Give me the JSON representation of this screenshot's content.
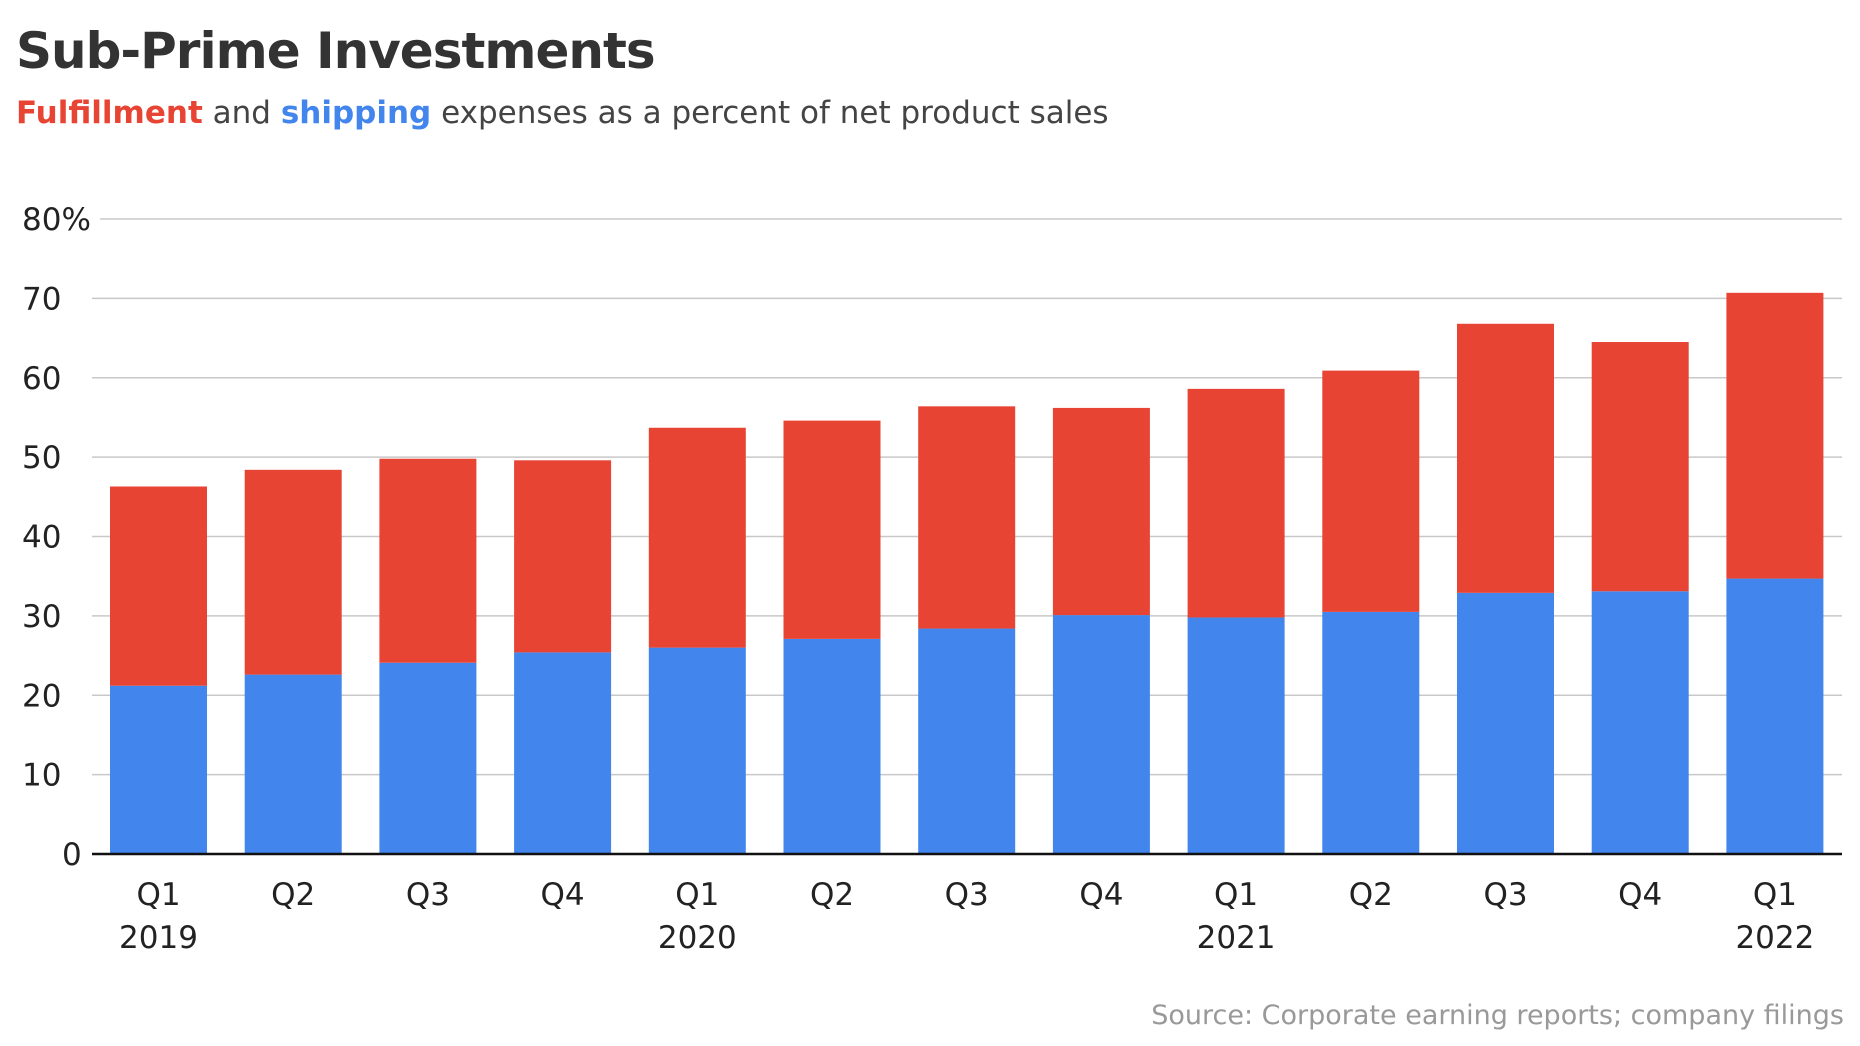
{
  "title": "Sub-Prime Investments",
  "subtitle": {
    "fulfillment_word": "Fulfillment",
    "and_word": " and ",
    "shipping_word": "shipping",
    "rest": " expenses as a percent of net product sales"
  },
  "source": "Source: Corporate earning reports; company filings",
  "colors": {
    "fulfillment": "#E84433",
    "shipping": "#4285EC"
  },
  "chart_data": {
    "type": "bar",
    "stacked": true,
    "title": "Sub-Prime Investments",
    "categories": [
      "Q1 2019",
      "Q2 2019",
      "Q3 2019",
      "Q4 2019",
      "Q1 2020",
      "Q2 2020",
      "Q3 2020",
      "Q4 2020",
      "Q1 2021",
      "Q2 2021",
      "Q3 2021",
      "Q4 2021",
      "Q1 2022"
    ],
    "x_tick_labels": [
      [
        "Q1",
        "2019"
      ],
      [
        "Q2",
        ""
      ],
      [
        "Q3",
        ""
      ],
      [
        "Q4",
        ""
      ],
      [
        "Q1",
        "2020"
      ],
      [
        "Q2",
        ""
      ],
      [
        "Q3",
        ""
      ],
      [
        "Q4",
        ""
      ],
      [
        "Q1",
        "2021"
      ],
      [
        "Q2",
        ""
      ],
      [
        "Q3",
        ""
      ],
      [
        "Q4",
        ""
      ],
      [
        "Q1",
        "2022"
      ]
    ],
    "series": [
      {
        "name": "shipping",
        "color": "#4285EC",
        "values": [
          21.2,
          22.6,
          24.1,
          25.4,
          26.0,
          27.1,
          28.4,
          30.1,
          29.8,
          30.5,
          32.9,
          33.1,
          34.7
        ]
      },
      {
        "name": "Fulfillment",
        "color": "#E84433",
        "values": [
          25.1,
          25.8,
          25.7,
          24.2,
          27.7,
          27.5,
          28.0,
          26.1,
          28.8,
          30.4,
          33.9,
          31.4,
          36.0
        ]
      }
    ],
    "y_ticks": [
      "0",
      "10",
      "20",
      "30",
      "40",
      "50",
      "60",
      "70",
      "80%"
    ],
    "y_tick_values": [
      0,
      10,
      20,
      30,
      40,
      50,
      60,
      70,
      80
    ],
    "ylim": [
      0,
      80
    ],
    "grid": true,
    "legend": "in subtitle"
  }
}
